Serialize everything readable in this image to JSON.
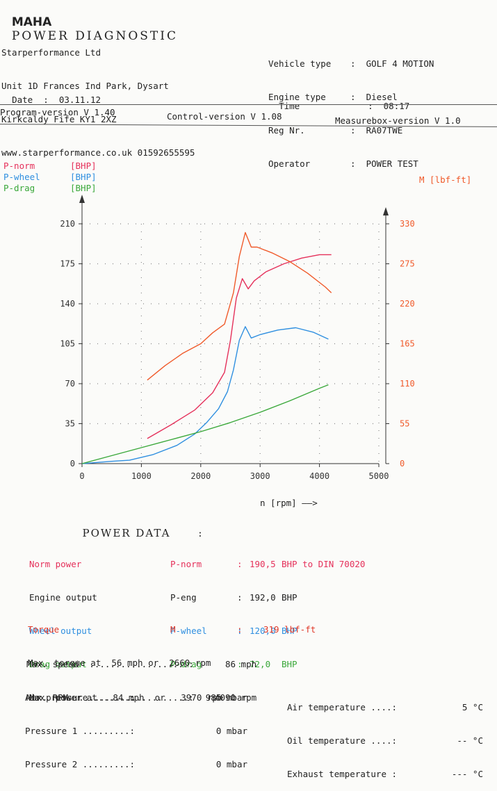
{
  "header": {
    "logo": "MAHA",
    "title": "POWER DIAGNOSTIC",
    "company": [
      "Starperformance Ltd",
      "Unit 1D Frances Ind Park, Dysart",
      "Kirkcaldy Fife KY1 2XZ",
      "www.starperformance.co.uk 01592655595"
    ],
    "date_label": "Date",
    "date_value": "03.11.12",
    "vehicle_type_label": "Vehicle type",
    "vehicle_type_value": "GOLF 4 MOTION",
    "engine_type_label": "Engine type",
    "engine_type_value": "Diesel",
    "reg_label": "Reg Nr.",
    "reg_value": "RA07TWE",
    "operator_label": "Operator",
    "operator_value": "POWER TEST",
    "time_label": "Time",
    "time_value": "08:17",
    "program_version": "Program-version V 1.40",
    "control_version": "Control-version V 1.08",
    "measurebox_version": "Measurebox-version V 1.0"
  },
  "legend": [
    {
      "name": "P-norm",
      "unit": "[BHP]",
      "color": "#e5305a"
    },
    {
      "name": "P-wheel",
      "unit": "[BHP]",
      "color": "#2f8fe0"
    },
    {
      "name": "P-drag",
      "unit": "[BHP]",
      "color": "#3aa83a"
    }
  ],
  "right_axis_label": "M [lbf-ft]",
  "x_axis_label": "n [rpm] ——>",
  "chart_data": {
    "type": "line",
    "xlabel": "n [rpm]",
    "ylabel": "BHP",
    "y2label": "M [lbf-ft]",
    "xlim": [
      0,
      5000
    ],
    "ylim": [
      0,
      210
    ],
    "y2lim": [
      0,
      330
    ],
    "xticks": [
      0,
      1000,
      2000,
      3000,
      4000,
      5000
    ],
    "yticks": [
      0,
      35,
      70,
      105,
      140,
      175,
      210
    ],
    "y2ticks": [
      0,
      55,
      110,
      165,
      220,
      275,
      330
    ],
    "grid": "dotted",
    "series": [
      {
        "name": "P-norm",
        "axis": "left",
        "color": "#e5305a",
        "x": [
          1100,
          1500,
          1900,
          2200,
          2400,
          2500,
          2600,
          2700,
          2800,
          2900,
          3100,
          3400,
          3700,
          4000,
          4200
        ],
        "y": [
          22,
          34,
          47,
          62,
          80,
          108,
          145,
          162,
          153,
          160,
          168,
          175,
          180,
          183,
          183
        ]
      },
      {
        "name": "P-wheel",
        "axis": "left",
        "color": "#2f8fe0",
        "x": [
          0,
          500,
          800,
          1200,
          1600,
          1900,
          2100,
          2300,
          2450,
          2550,
          2650,
          2750,
          2850,
          3000,
          3300,
          3600,
          3900,
          4150
        ],
        "y": [
          0,
          2,
          3,
          8,
          16,
          26,
          36,
          48,
          63,
          82,
          108,
          120,
          110,
          113,
          117,
          119,
          115,
          109
        ]
      },
      {
        "name": "P-drag",
        "axis": "left",
        "color": "#3aa83a",
        "x": [
          0,
          500,
          1000,
          1500,
          2000,
          2500,
          3000,
          3500,
          4000,
          4150
        ],
        "y": [
          0,
          7,
          14,
          21,
          28,
          36,
          45,
          55,
          66,
          69
        ]
      },
      {
        "name": "M",
        "axis": "right",
        "color": "#f05a2a",
        "x": [
          1100,
          1400,
          1700,
          2000,
          2200,
          2400,
          2550,
          2650,
          2750,
          2850,
          2950,
          3200,
          3500,
          3800,
          4100,
          4200
        ],
        "y": [
          115,
          135,
          152,
          165,
          180,
          192,
          235,
          285,
          318,
          298,
          298,
          290,
          278,
          262,
          243,
          235
        ]
      }
    ]
  },
  "power_data": {
    "title": "POWER DATA",
    "colon": ":",
    "rows": [
      {
        "label": "Norm power",
        "key": "P-norm",
        "sep": ":",
        "value": "190,5",
        "unit": "BHP to DIN 70020",
        "color": "#e5305a"
      },
      {
        "label": "Engine output",
        "key": "P-eng",
        "sep": ":",
        "value": "192,0",
        "unit": "BHP",
        "color": "#222222"
      },
      {
        "label": "Wheel output",
        "key": "P-wheel",
        "sep": ":",
        "value": "120,0",
        "unit": "BHP",
        "color": "#2f8fe0"
      },
      {
        "label": "Drag output",
        "key": "P-drag",
        "sep": ":",
        "value": "72,0",
        "unit": "BHP",
        "color": "#3aa83a"
      }
    ],
    "max_power_line": "Max. power at   84 mph  or   3970 rpm",
    "torque_label": "Torque",
    "torque_key": "M",
    "torque_sep": ":",
    "torque_value": "319 lbf-ft",
    "max_torque_line": "Max. torque at  56 mph or  2660 rpm",
    "max_speed_line": "Max. speed  ...................:      86 mph",
    "max_rpm_line": "Max. RPM ......................:    4090 rpm",
    "air_pressure_line": "Air pressure .......:",
    "air_pressure_value": "985 mbar",
    "pressure1_line": "Pressure 1 .........:",
    "pressure1_value": "0 mbar",
    "pressure2_line": "Pressure 2 .........:",
    "pressure2_value": "0 mbar",
    "air_temp_line": "Air temperature ....:",
    "air_temp_value": "5 °C",
    "oil_temp_line": "Oil temperature ....:",
    "oil_temp_value": "-- °C",
    "exhaust_temp_line": "Exhaust temperature :",
    "exhaust_temp_value": "--- °C"
  }
}
